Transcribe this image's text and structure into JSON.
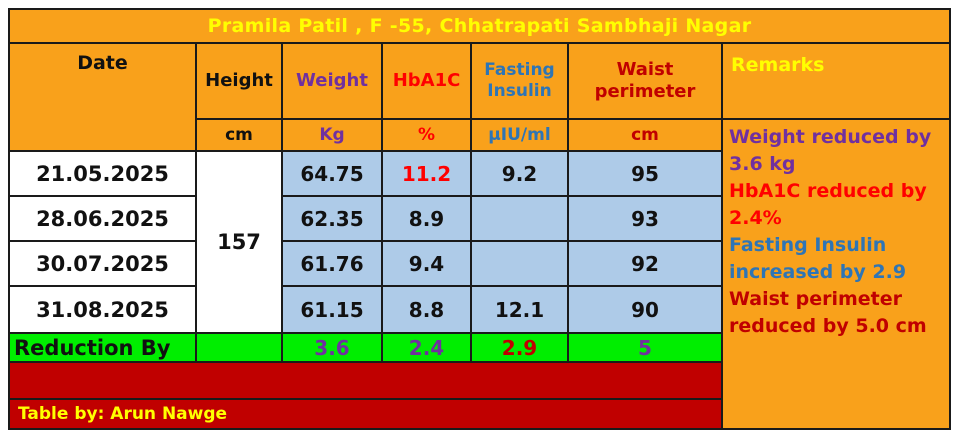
{
  "title": "Pramila Patil ,  F -55, Chhatrapati Sambhaji Nagar",
  "colors": {
    "orange_bg": "#F9A11B",
    "light_blue_bg": "#AECBE8",
    "green_bg": "#00EE00",
    "dark_red_bg": "#C00000",
    "yellow": "#FFFF00",
    "purple": "#7030A0",
    "red": "#FF0000",
    "blue": "#2E75B6",
    "dark_red": "#C00000",
    "black": "#111111"
  },
  "columns": {
    "date": {
      "label": "Date"
    },
    "height": {
      "label": "Height",
      "unit": "cm"
    },
    "weight": {
      "label": "Weight",
      "unit": "Kg"
    },
    "hba1c": {
      "label": "HbA1C",
      "unit": "%"
    },
    "fasting_insulin": {
      "label": "Fasting Insulin",
      "unit": "µIU/ml"
    },
    "waist": {
      "label": "Waist perimeter",
      "unit": "cm"
    },
    "remarks": {
      "label": "Remarks"
    }
  },
  "height_value": "157",
  "rows": [
    {
      "date": "21.05.2025",
      "weight": "64.75",
      "hba1c": "11.2",
      "fasting_insulin": "9.2",
      "waist": "95"
    },
    {
      "date": "28.06.2025",
      "weight": "62.35",
      "hba1c": "8.9",
      "fasting_insulin": "",
      "waist": "93"
    },
    {
      "date": "30.07.2025",
      "weight": "61.76",
      "hba1c": "9.4",
      "fasting_insulin": "",
      "waist": "92"
    },
    {
      "date": "31.08.2025",
      "weight": "61.15",
      "hba1c": "8.8",
      "fasting_insulin": "12.1",
      "waist": "90"
    }
  ],
  "reduction": {
    "label": "Reduction By",
    "weight": "3.6",
    "hba1c": "2.4",
    "fasting_insulin": "2.9",
    "waist": "5"
  },
  "remarks_lines": [
    {
      "text": "Weight reduced by 3.6 kg",
      "color": "#7030A0"
    },
    {
      "text": "HbA1C reduced by 2.4%",
      "color": "#FF0000"
    },
    {
      "text": "Fasting Insulin increased by 2.9",
      "color": "#2E75B6"
    },
    {
      "text": "Waist perimeter reduced by 5.0 cm",
      "color": "#C00000"
    }
  ],
  "footer": {
    "credit": "Table by: Arun Nawge"
  },
  "chart_data": {
    "type": "table",
    "title": "Pramila Patil ,  F -55, Chhatrapati Sambhaji Nagar",
    "columns": [
      "Date",
      "Height (cm)",
      "Weight (Kg)",
      "HbA1C (%)",
      "Fasting Insulin (µIU/ml)",
      "Waist perimeter (cm)"
    ],
    "rows": [
      [
        "21.05.2025",
        157,
        64.75,
        11.2,
        9.2,
        95
      ],
      [
        "28.06.2025",
        157,
        62.35,
        8.9,
        null,
        93
      ],
      [
        "30.07.2025",
        157,
        61.76,
        9.4,
        null,
        92
      ],
      [
        "31.08.2025",
        157,
        61.15,
        8.8,
        12.1,
        90
      ]
    ],
    "reduction_by": {
      "weight_kg": 3.6,
      "hba1c_pct": 2.4,
      "fasting_insulin": 2.9,
      "waist_cm": 5
    },
    "remarks": [
      "Weight reduced by 3.6 kg",
      "HbA1C reduced by 2.4%",
      "Fasting Insulin increased by 2.9",
      "Waist perimeter reduced by 5.0 cm"
    ]
  }
}
